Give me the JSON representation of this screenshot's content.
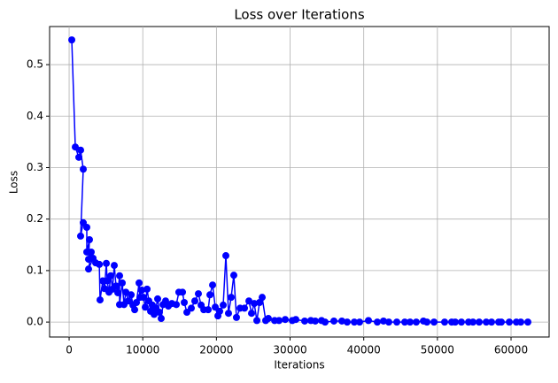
{
  "chart_data": {
    "type": "line",
    "title": "Loss over Iterations",
    "xlabel": "Iterations",
    "ylabel": "Loss",
    "grid": true,
    "xlim": [
      -2650,
      65170
    ],
    "ylim": [
      -0.029,
      0.574
    ],
    "xticks": [
      0,
      10000,
      20000,
      30000,
      40000,
      50000,
      60000
    ],
    "yticks": [
      {
        "value": 0,
        "label": "0.0"
      },
      0.1,
      0.2,
      0.3,
      0.4,
      0.5
    ],
    "series": [
      {
        "color": "#0000ff",
        "x": [
          360,
          840,
          1320,
          1560,
          1920,
          1560,
          1920,
          2400,
          2400,
          2760,
          2640,
          3000,
          2640,
          3250,
          3600,
          4100,
          4200,
          4570,
          4810,
          5050,
          5170,
          5410,
          5650,
          5890,
          6130,
          6370,
          6610,
          6850,
          6850,
          7210,
          7450,
          7700,
          8050,
          8420,
          8660,
          8900,
          9140,
          9500,
          9620,
          9860,
          10100,
          10340,
          10580,
          10820,
          11060,
          11300,
          11540,
          11780,
          12020,
          12260,
          12500,
          12750,
          13100,
          13470,
          13950,
          14550,
          14900,
          15390,
          15630,
          15990,
          16590,
          17070,
          17550,
          17920,
          18280,
          18880,
          19120,
          19480,
          19840,
          20200,
          20440,
          20920,
          21280,
          21640,
          22000,
          22360,
          22720,
          23210,
          23810,
          24410,
          24770,
          25130,
          25490,
          25850,
          26210,
          26690,
          27050,
          27900,
          28500,
          29340,
          30300,
          30780,
          31980,
          32820,
          33420,
          34270,
          34750,
          35950,
          37030,
          37750,
          38720,
          39440,
          40640,
          41840,
          42680,
          43400,
          44490,
          45570,
          46290,
          47130,
          48100,
          48580,
          49540,
          50980,
          51940,
          52420,
          53260,
          54230,
          54830,
          55670,
          56630,
          57350,
          58320,
          58680,
          59760,
          60720,
          61320,
          62280
        ],
        "values": [
          0.548,
          0.34,
          0.32,
          0.334,
          0.297,
          0.167,
          0.193,
          0.184,
          0.136,
          0.16,
          0.122,
          0.136,
          0.103,
          0.124,
          0.115,
          0.112,
          0.043,
          0.08,
          0.065,
          0.114,
          0.08,
          0.058,
          0.09,
          0.064,
          0.11,
          0.07,
          0.057,
          0.09,
          0.034,
          0.076,
          0.034,
          0.058,
          0.041,
          0.053,
          0.033,
          0.024,
          0.038,
          0.076,
          0.048,
          0.062,
          0.048,
          0.029,
          0.064,
          0.041,
          0.021,
          0.033,
          0.015,
          0.027,
          0.045,
          0.019,
          0.007,
          0.034,
          0.041,
          0.031,
          0.036,
          0.034,
          0.058,
          0.058,
          0.038,
          0.019,
          0.027,
          0.041,
          0.055,
          0.033,
          0.024,
          0.024,
          0.053,
          0.072,
          0.029,
          0.012,
          0.021,
          0.033,
          0.129,
          0.017,
          0.048,
          0.091,
          0.009,
          0.027,
          0.027,
          0.041,
          0.017,
          0.036,
          0.003,
          0.038,
          0.048,
          0.003,
          0.007,
          0.003,
          0.003,
          0.005,
          0.003,
          0.005,
          0.002,
          0.003,
          0.002,
          0.003,
          0,
          0.002,
          0.002,
          0,
          0,
          0,
          0.003,
          0,
          0.002,
          0,
          0,
          0,
          0,
          0,
          0.002,
          0,
          0,
          0,
          0,
          0,
          0,
          0,
          0,
          0,
          0,
          0,
          0,
          0,
          0,
          0,
          0,
          0
        ]
      }
    ]
  }
}
